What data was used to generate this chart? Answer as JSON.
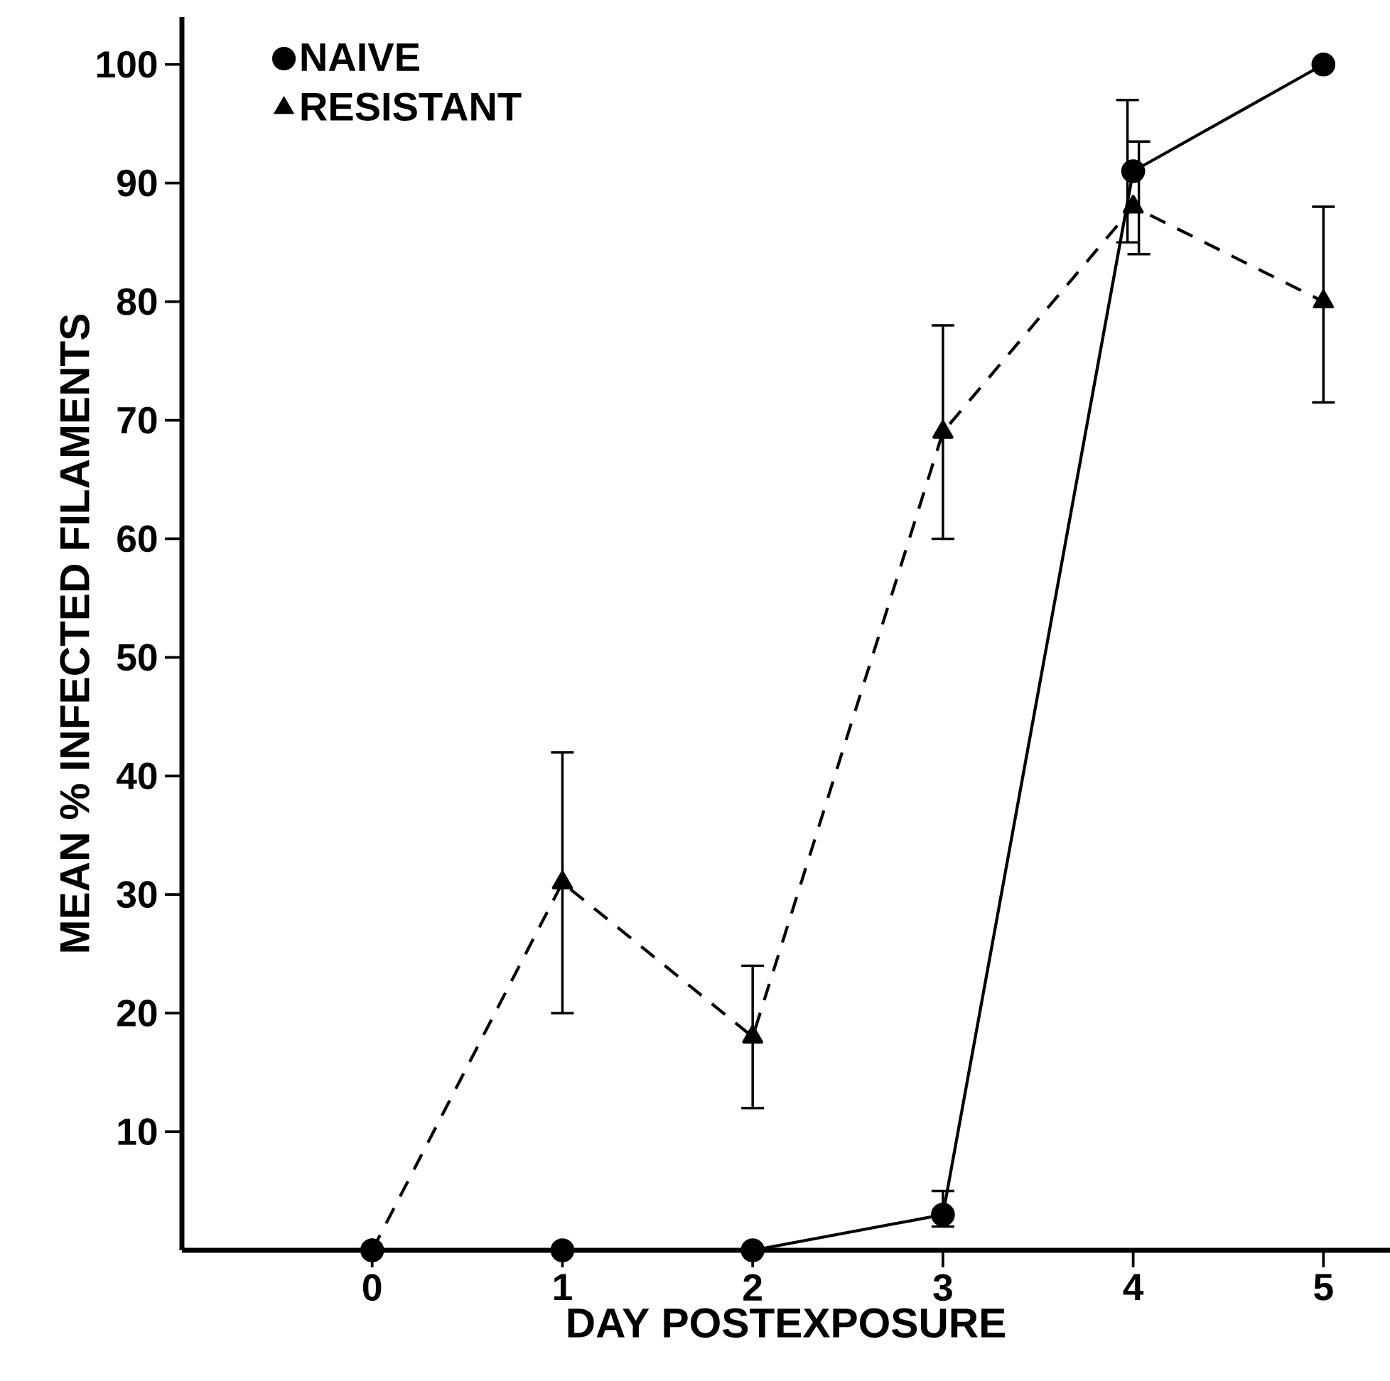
{
  "chart_data": {
    "type": "line",
    "xlabel": "DAY POSTEXPOSURE",
    "ylabel": "MEAN % INFECTED FILAMENTS",
    "x": [
      0,
      1,
      2,
      3,
      4,
      5
    ],
    "series": [
      {
        "name": "NAIVE",
        "color": "#000000",
        "marker": "circle",
        "line_style": "solid",
        "values": [
          0,
          0,
          0,
          3,
          91,
          100
        ],
        "errors": [
          null,
          null,
          null,
          [
            2,
            5
          ],
          [
            85,
            97
          ],
          null
        ]
      },
      {
        "name": "RESISTANT",
        "color": "#000000",
        "marker": "triangle",
        "line_style": "dashed",
        "values": [
          0,
          31,
          18,
          69,
          88,
          80
        ],
        "errors": [
          null,
          [
            20,
            42
          ],
          [
            12,
            24
          ],
          [
            60,
            78
          ],
          [
            84,
            93.5
          ],
          [
            71.5,
            88
          ]
        ]
      }
    ],
    "xlim": [
      -1,
      5.35
    ],
    "ylim": [
      0,
      104
    ],
    "xticks": [
      0,
      1,
      2,
      3,
      4,
      5
    ],
    "yticks": [
      10,
      20,
      30,
      40,
      50,
      60,
      70,
      80,
      90,
      100
    ],
    "grid": false,
    "legend": "top left"
  }
}
